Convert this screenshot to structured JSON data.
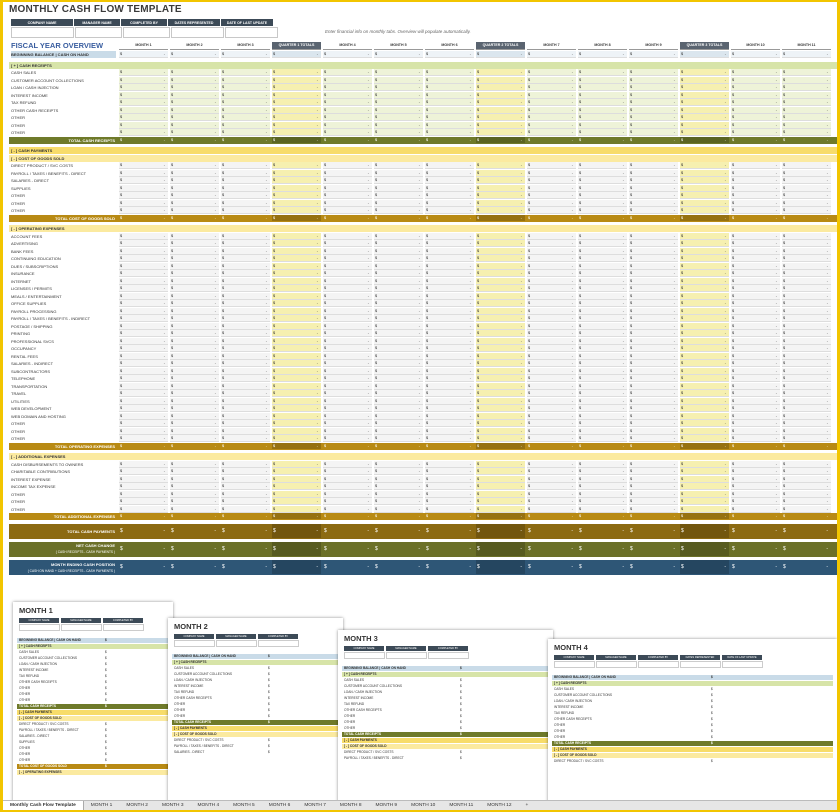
{
  "title": "MONTHLY CASH FLOW TEMPLATE",
  "header_fields": [
    "COMPANY NAME",
    "MANAGER NAME",
    "COMPLETED BY",
    "DATES REPRESENTED",
    "DATE OF LAST UPDATE"
  ],
  "note": "Enter financial info on monthly tabs.  Overview will populate automatically.",
  "fiscal_title": "FISCAL YEAR OVERVIEW",
  "columns": [
    "MONTH 1",
    "MONTH 2",
    "MONTH 3",
    "QUARTER 1 TOTALS",
    "MONTH 4",
    "MONTH 5",
    "MONTH 6",
    "QUARTER 2 TOTALS",
    "MONTH 7",
    "MONTH 8",
    "MONTH 9",
    "QUARTER 3 TOTALS",
    "MONTH 10",
    "MONTH 11"
  ],
  "cell_currency": "$",
  "cell_dash": "-",
  "rows": [
    {
      "label": "BEGINNING BALANCE  |  CASH ON HAND",
      "type": "begin"
    },
    {
      "label": "",
      "type": "blank"
    },
    {
      "label": "[ + ]  CASH RECEIPTS",
      "type": "section-green"
    },
    {
      "label": "CASH SALES",
      "type": "line"
    },
    {
      "label": "CUSTOMER ACCOUNT COLLECTIONS",
      "type": "line"
    },
    {
      "label": "LOAN / CASH INJECTION",
      "type": "line"
    },
    {
      "label": "INTEREST INCOME",
      "type": "line"
    },
    {
      "label": "TAX REFUND",
      "type": "line"
    },
    {
      "label": "OTHER CASH RECEIPTS",
      "type": "line"
    },
    {
      "label": "OTHER",
      "type": "line"
    },
    {
      "label": "OTHER",
      "type": "line"
    },
    {
      "label": "OTHER",
      "type": "line"
    },
    {
      "label": "TOTAL CASH RECEIPTS",
      "type": "total-olive"
    },
    {
      "label": "",
      "type": "blank"
    },
    {
      "label": "[ - ]  CASH PAYMENTS",
      "type": "section-yellow"
    },
    {
      "label": "[ - ]  COST OF GOODS SOLD",
      "type": "section-yellow2"
    },
    {
      "label": "DIRECT PRODUCT / SVC COSTS",
      "type": "line"
    },
    {
      "label": "PAYROLL / TAXES / BENEFITS - DIRECT",
      "type": "line"
    },
    {
      "label": "SALARIES - DIRECT",
      "type": "line"
    },
    {
      "label": "SUPPLIES",
      "type": "line"
    },
    {
      "label": "OTHER",
      "type": "line"
    },
    {
      "label": "OTHER",
      "type": "line"
    },
    {
      "label": "OTHER",
      "type": "line"
    },
    {
      "label": "TOTAL COST OF GOODS SOLD",
      "type": "total-gold"
    },
    {
      "label": "",
      "type": "blank"
    },
    {
      "label": "[ - ]  OPERATING EXPENSES",
      "type": "section-yellow2"
    },
    {
      "label": "ACCOUNT FEES",
      "type": "line"
    },
    {
      "label": "ADVERTISING",
      "type": "line"
    },
    {
      "label": "BANK FEES",
      "type": "line"
    },
    {
      "label": "CONTINUING EDUCATION",
      "type": "line"
    },
    {
      "label": "DUES / SUBSCRIPTIONS",
      "type": "line"
    },
    {
      "label": "INSURANCE",
      "type": "line"
    },
    {
      "label": "INTERNET",
      "type": "line"
    },
    {
      "label": "LICENSES / PERMITS",
      "type": "line"
    },
    {
      "label": "MEALS / ENTERTAINMENT",
      "type": "line"
    },
    {
      "label": "OFFICE SUPPLIES",
      "type": "line"
    },
    {
      "label": "PAYROLL PROCESSING",
      "type": "line"
    },
    {
      "label": "PAYROLL / TAXES / BENEFITS - INDIRECT",
      "type": "line"
    },
    {
      "label": "POSTAGE / SHIPPING",
      "type": "line"
    },
    {
      "label": "PRINTING",
      "type": "line"
    },
    {
      "label": "PROFESSIONAL SVCS",
      "type": "line"
    },
    {
      "label": "OCCUPANCY",
      "type": "line"
    },
    {
      "label": "RENTAL FEES",
      "type": "line"
    },
    {
      "label": "SALARIES - INDIRECT",
      "type": "line"
    },
    {
      "label": "SUBCONTRACTORS",
      "type": "line"
    },
    {
      "label": "TELEPHONE",
      "type": "line"
    },
    {
      "label": "TRANSPORTATION",
      "type": "line"
    },
    {
      "label": "TRAVEL",
      "type": "line"
    },
    {
      "label": "UTILITIES",
      "type": "line"
    },
    {
      "label": "WEB DEVELOPMENT",
      "type": "line"
    },
    {
      "label": "WEB DOMAIN AND HOSTING",
      "type": "line"
    },
    {
      "label": "OTHER",
      "type": "line"
    },
    {
      "label": "OTHER",
      "type": "line"
    },
    {
      "label": "OTHER",
      "type": "line"
    },
    {
      "label": "TOTAL OPERATING EXPENSES",
      "type": "total-gold"
    },
    {
      "label": "",
      "type": "blank"
    },
    {
      "label": "[ - ]  ADDITIONAL EXPENSES",
      "type": "section-yellow2"
    },
    {
      "label": "CASH DISBURSEMENTS TO OWNERS",
      "type": "line"
    },
    {
      "label": "CHARITABLE CONTRIBUTIONS",
      "type": "line"
    },
    {
      "label": "INTEREST EXPENSE",
      "type": "line"
    },
    {
      "label": "INCOME TAX EXPENSE",
      "type": "line"
    },
    {
      "label": "OTHER",
      "type": "line"
    },
    {
      "label": "OTHER",
      "type": "line"
    },
    {
      "label": "OTHER",
      "type": "line"
    },
    {
      "label": "TOTAL ADDITIONAL EXPENSES",
      "type": "total-gold"
    },
    {
      "label": "",
      "type": "blank"
    },
    {
      "label": "TOTAL CASH PAYMENTS",
      "type": "big-brown"
    },
    {
      "label": "",
      "type": "blank"
    },
    {
      "label": "NET CASH CHANGE",
      "sub": "( CASH RECEIPTS - CASH PAYMENTS )",
      "type": "big-olive"
    },
    {
      "label": "",
      "type": "blank"
    },
    {
      "label": "MONTH ENDING CASH POSITION",
      "sub": "( CASH ON HAND + CASH RECEIPTS - CASH PAYMENTS )",
      "type": "big-blue"
    }
  ],
  "thumbs": [
    {
      "title": "MONTH 1",
      "fields": [
        "COMPANY NAME",
        "MANAGER NAME",
        "COMPLETED BY"
      ],
      "lines": [
        "BEGINNING BALANCE  |  CASH ON HAND",
        "[ + ]  CASH RECEIPTS",
        "CASH SALES",
        "CUSTOMER ACCOUNT COLLECTIONS",
        "LOAN / CASH INJECTION",
        "INTEREST INCOME",
        "TAX REFUND",
        "OTHER CASH RECEIPTS",
        "OTHER",
        "OTHER",
        "OTHER",
        "TOTAL CASH RECEIPTS",
        "[ - ]  CASH PAYMENTS",
        "[ - ]  COST OF GOODS SOLD",
        "DIRECT PRODUCT / SVC COSTS",
        "PAYROLL / TAXES / BENEFITS - DIRECT",
        "SALARIES - DIRECT",
        "SUPPLIES",
        "OTHER",
        "OTHER",
        "OTHER",
        "TOTAL COST OF GOODS SOLD",
        "[ - ]  OPERATING EXPENSES"
      ]
    },
    {
      "title": "MONTH 2",
      "fields": [
        "COMPANY NAME",
        "MANAGER NAME",
        "COMPLETED BY"
      ],
      "lines": [
        "BEGINNING BALANCE  |  CASH ON HAND",
        "[ + ]  CASH RECEIPTS",
        "CASH SALES",
        "CUSTOMER ACCOUNT COLLECTIONS",
        "LOAN / CASH INJECTION",
        "INTEREST INCOME",
        "TAX REFUND",
        "OTHER CASH RECEIPTS",
        "OTHER",
        "OTHER",
        "OTHER",
        "TOTAL CASH RECEIPTS",
        "[ - ]  CASH PAYMENTS",
        "[ - ]  COST OF GOODS SOLD",
        "DIRECT PRODUCT / SVC COSTS",
        "PAYROLL / TAXES / BENEFITS - DIRECT",
        "SALARIES - DIRECT"
      ]
    },
    {
      "title": "MONTH 3",
      "fields": [
        "COMPANY NAME",
        "MANAGER NAME",
        "COMPLETED BY"
      ],
      "lines": [
        "BEGINNING BALANCE  |  CASH ON HAND",
        "[ + ]  CASH RECEIPTS",
        "CASH SALES",
        "CUSTOMER ACCOUNT COLLECTIONS",
        "LOAN / CASH INJECTION",
        "INTEREST INCOME",
        "TAX REFUND",
        "OTHER CASH RECEIPTS",
        "OTHER",
        "OTHER",
        "OTHER",
        "TOTAL CASH RECEIPTS",
        "[ - ]  CASH PAYMENTS",
        "[ - ]  COST OF GOODS SOLD",
        "DIRECT PRODUCT / SVC COSTS",
        "PAYROLL / TAXES / BENEFITS - DIRECT"
      ]
    },
    {
      "title": "MONTH 4",
      "fields": [
        "COMPANY NAME",
        "MANAGER NAME",
        "COMPLETED BY",
        "DATES REPRESENTED",
        "DATE OF LAST UPDATE"
      ],
      "lines": [
        "BEGINNING BALANCE  |  CASH ON HAND",
        "[ + ]  CASH RECEIPTS",
        "CASH SALES",
        "CUSTOMER ACCOUNT COLLECTIONS",
        "LOAN / CASH INJECTION",
        "INTEREST INCOME",
        "TAX REFUND",
        "OTHER CASH RECEIPTS",
        "OTHER",
        "OTHER",
        "OTHER",
        "TOTAL CASH RECEIPTS",
        "[ - ]  CASH PAYMENTS",
        "[ - ]  COST OF GOODS SOLD",
        "DIRECT PRODUCT / SVC COSTS"
      ]
    }
  ],
  "tabs": [
    "Monthly Cash Flow Template",
    "MONTH 1",
    "MONTH 2",
    "MONTH 3",
    "MONTH 4",
    "MONTH 5",
    "MONTH 6",
    "MONTH 7",
    "MONTH 8",
    "MONTH 9",
    "MONTH 10",
    "MONTH 11",
    "MONTH 12",
    "+"
  ],
  "colors": {
    "accent": "#f2c500",
    "header": "#3c4a57",
    "begin": "#c9dbe8",
    "green_section": "#d7e4a8",
    "green_cell": "#eef3d8",
    "quarter_cell": "#f6f0b0",
    "yellow_section": "#f7dc6a",
    "yellow2_section": "#fbeaa0",
    "total_olive": "#6f7a2a",
    "total_gold": "#b88a14",
    "big_brown": "#8c6a12",
    "big_olive": "#6b7028",
    "big_blue": "#2e5676"
  }
}
